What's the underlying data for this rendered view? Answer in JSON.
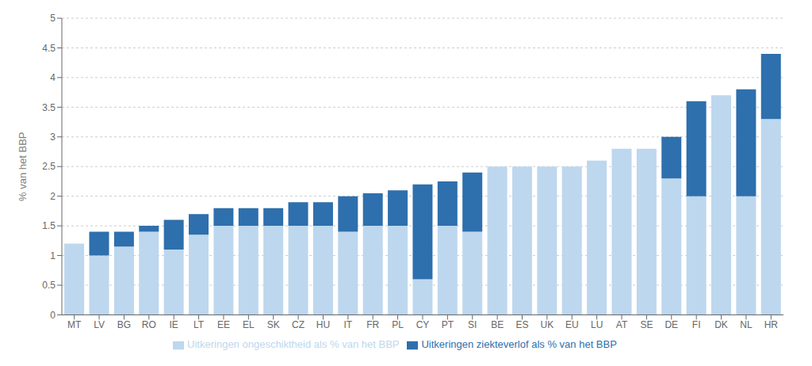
{
  "chart_data": {
    "type": "bar",
    "stacked": true,
    "grid": true,
    "legend": "bottom",
    "ylabel": "% van het BBP",
    "categories": [
      "MT",
      "LV",
      "BG",
      "RO",
      "IE",
      "LT",
      "EE",
      "EL",
      "SK",
      "CZ",
      "HU",
      "IT",
      "FR",
      "PL",
      "CY",
      "PT",
      "SI",
      "BE",
      "ES",
      "UK",
      "EU",
      "LU",
      "AT",
      "SE",
      "DE",
      "FI",
      "DK",
      "NL",
      "HR"
    ],
    "series": [
      {
        "name": "Uitkeringen ongeschiktheid als % van het BBP",
        "color": "#bdd7ee",
        "values": [
          1.2,
          1.0,
          1.15,
          1.4,
          1.1,
          1.35,
          1.5,
          1.5,
          1.5,
          1.5,
          1.5,
          1.4,
          1.5,
          1.5,
          0.6,
          1.5,
          1.4,
          2.5,
          2.5,
          2.5,
          2.5,
          2.6,
          2.8,
          2.8,
          2.3,
          2.0,
          3.7,
          2.0,
          3.3
        ]
      },
      {
        "name": "Uitkeringen ziekteverlof als % van het BBP",
        "color": "#2e6fad",
        "values": [
          0.0,
          0.4,
          0.25,
          0.1,
          0.5,
          0.35,
          0.3,
          0.3,
          0.3,
          0.4,
          0.4,
          0.6,
          0.55,
          0.6,
          1.6,
          0.75,
          1.0,
          0.0,
          0.0,
          0.0,
          0.0,
          0.0,
          0.0,
          0.0,
          0.7,
          1.6,
          0.0,
          1.8,
          1.1
        ]
      }
    ],
    "ylim": [
      0,
      5
    ],
    "yticks": [
      0,
      0.5,
      1,
      1.5,
      2,
      2.5,
      3,
      3.5,
      4,
      4.5,
      5
    ]
  }
}
